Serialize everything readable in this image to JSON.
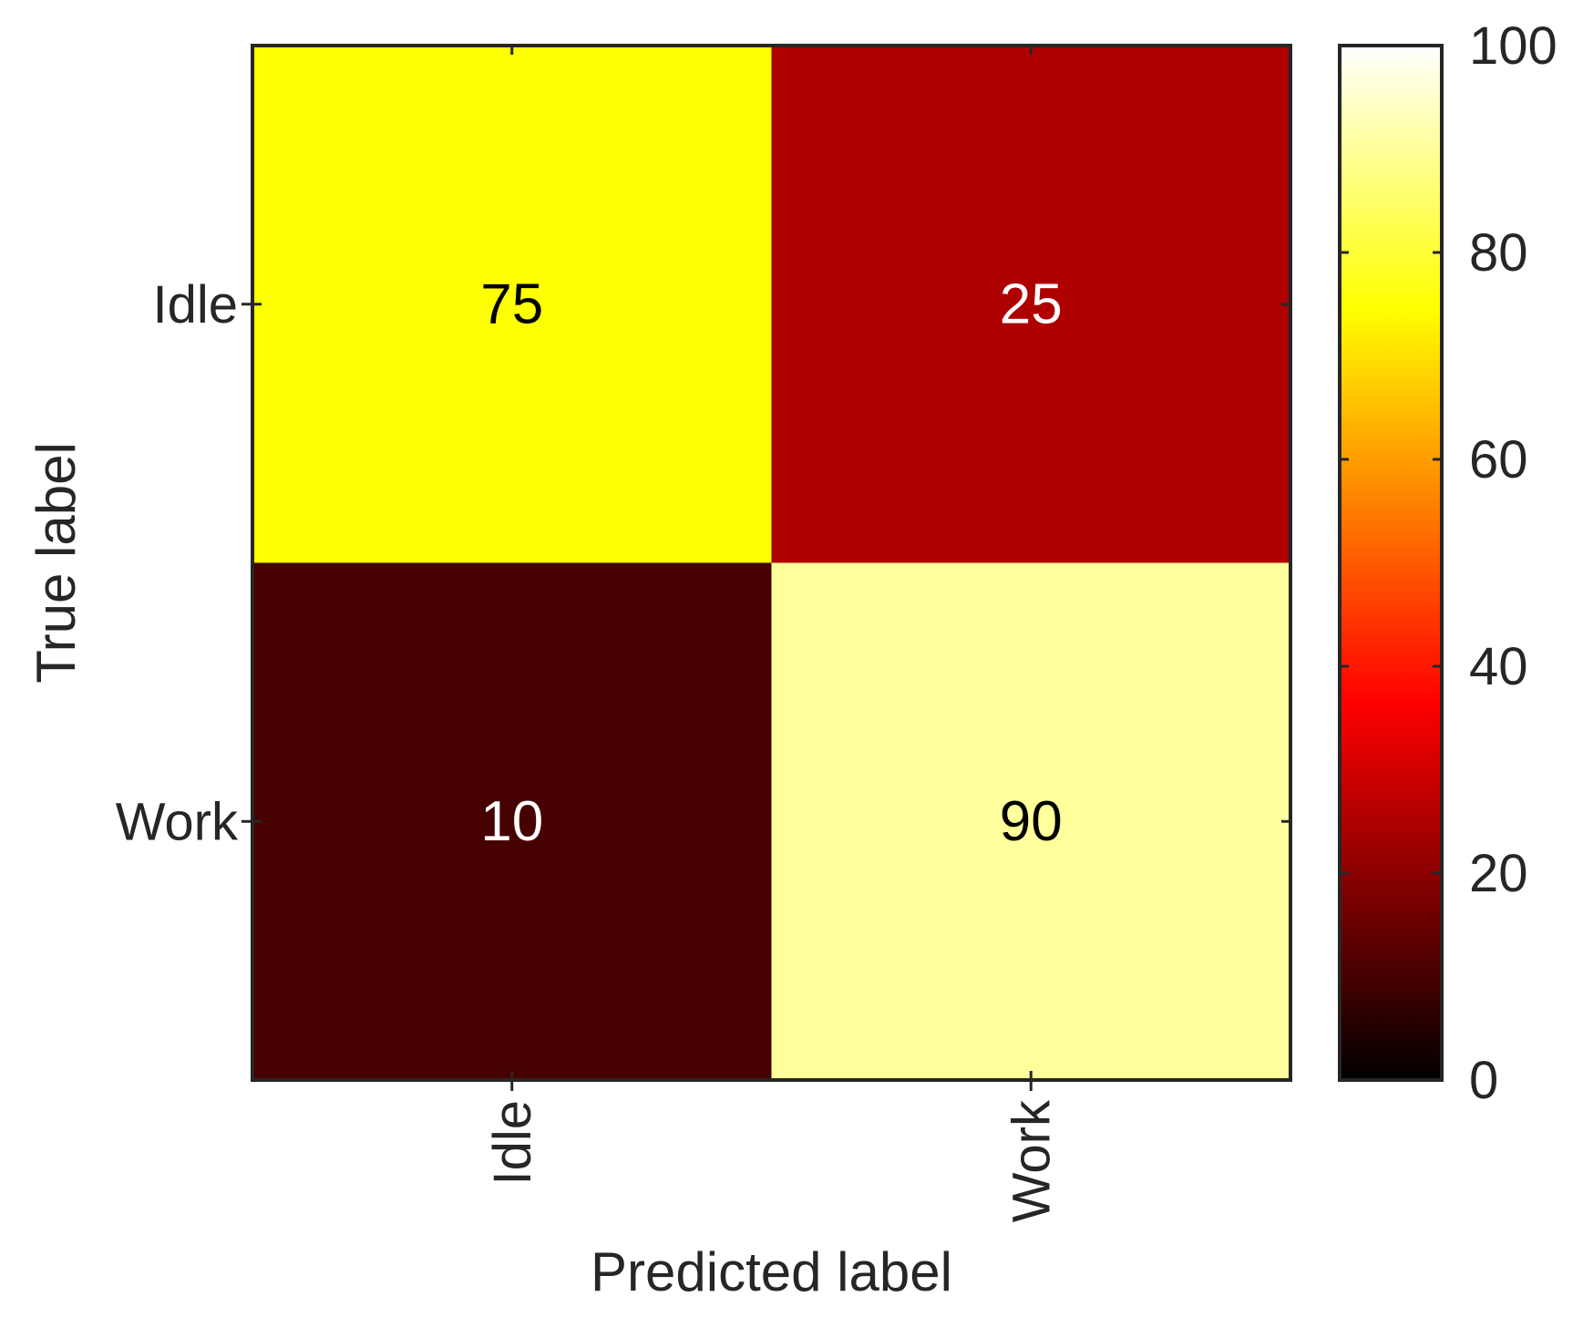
{
  "chart_data": {
    "type": "heatmap",
    "title": "",
    "xlabel": "Predicted label",
    "ylabel": "True label",
    "x_categories": [
      "Idle",
      "Work"
    ],
    "y_categories": [
      "Idle",
      "Work"
    ],
    "values": [
      [
        75,
        25
      ],
      [
        10,
        90
      ]
    ],
    "colormap": "hot",
    "colorbar": {
      "range": [
        0,
        100
      ],
      "ticks": [
        0,
        20,
        40,
        60,
        80,
        100
      ],
      "tick_labels": [
        "0",
        "20",
        "40",
        "60",
        "80",
        "100"
      ],
      "placement": "right"
    },
    "grid": false,
    "legend": "none"
  }
}
